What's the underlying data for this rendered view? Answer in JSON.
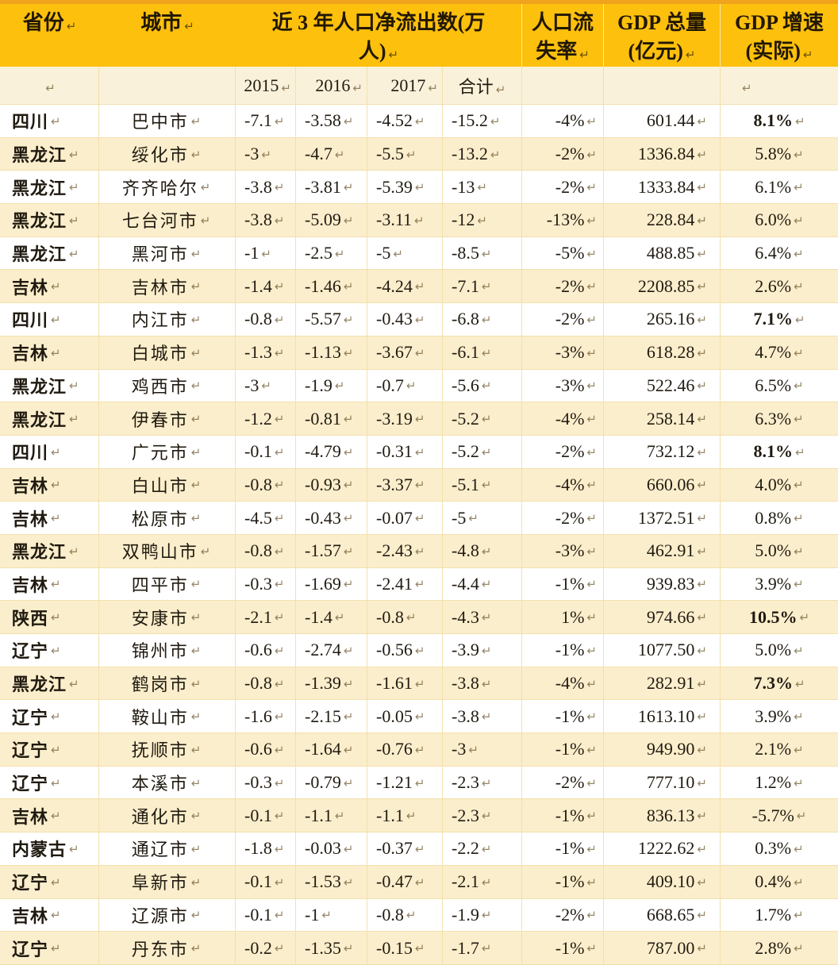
{
  "colors": {
    "header_bg": "#FCC00D",
    "header_top": "#F0A31C",
    "header_text": "#211703",
    "row_cream": "#FBEECC",
    "row_white": "#FFFFFF",
    "subheader_bg": "#FAF1DA",
    "grid": "#F2E0AC",
    "text": "#201A10",
    "mark": "#6E582D"
  },
  "table": {
    "header": {
      "province": "省份",
      "city": "城市",
      "outflow_line1": "近 3 年人口净流出数(万",
      "outflow_line2": "人)",
      "loss_line1": "人口流",
      "loss_line2": "失率",
      "gdp_line1": "GDP 总量",
      "gdp_line2": "(亿元)",
      "growth_line1": "GDP 增速",
      "growth_line2": "(实际)"
    },
    "subheader": {
      "y2015": "2015",
      "y2016": "2016",
      "y2017": "2017",
      "total": "合计"
    },
    "rows": [
      {
        "province": "四川",
        "city": "巴中市",
        "y2015": "-7.1",
        "y2016": "-3.58",
        "y2017": "-4.52",
        "total": "-15.2",
        "loss": "-4%",
        "gdp": "601.44",
        "growth": "8.1%",
        "growth_bold": true
      },
      {
        "province": "黑龙江",
        "city": "绥化市",
        "y2015": "-3",
        "y2016": "-4.7",
        "y2017": "-5.5",
        "total": "-13.2",
        "loss": "-2%",
        "gdp": "1336.84",
        "growth": "5.8%",
        "growth_bold": false
      },
      {
        "province": "黑龙江",
        "city": "齐齐哈尔",
        "y2015": "-3.8",
        "y2016": "-3.81",
        "y2017": "-5.39",
        "total": "-13",
        "loss": "-2%",
        "gdp": "1333.84",
        "growth": "6.1%",
        "growth_bold": false
      },
      {
        "province": "黑龙江",
        "city": "七台河市",
        "y2015": "-3.8",
        "y2016": "-5.09",
        "y2017": "-3.11",
        "total": "-12",
        "loss": "-13%",
        "gdp": "228.84",
        "growth": "6.0%",
        "growth_bold": false
      },
      {
        "province": "黑龙江",
        "city": "黑河市",
        "y2015": "-1",
        "y2016": "-2.5",
        "y2017": "-5",
        "total": "-8.5",
        "loss": "-5%",
        "gdp": "488.85",
        "growth": "6.4%",
        "growth_bold": false
      },
      {
        "province": "吉林",
        "city": "吉林市",
        "y2015": "-1.4",
        "y2016": "-1.46",
        "y2017": "-4.24",
        "total": "-7.1",
        "loss": "-2%",
        "gdp": "2208.85",
        "growth": "2.6%",
        "growth_bold": false
      },
      {
        "province": "四川",
        "city": "内江市",
        "y2015": "-0.8",
        "y2016": "-5.57",
        "y2017": "-0.43",
        "total": "-6.8",
        "loss": "-2%",
        "gdp": "265.16",
        "growth": "7.1%",
        "growth_bold": true
      },
      {
        "province": "吉林",
        "city": "白城市",
        "y2015": "-1.3",
        "y2016": "-1.13",
        "y2017": "-3.67",
        "total": "-6.1",
        "loss": "-3%",
        "gdp": "618.28",
        "growth": "4.7%",
        "growth_bold": false
      },
      {
        "province": "黑龙江",
        "city": "鸡西市",
        "y2015": "-3",
        "y2016": "-1.9",
        "y2017": "-0.7",
        "total": "-5.6",
        "loss": "-3%",
        "gdp": "522.46",
        "growth": "6.5%",
        "growth_bold": false
      },
      {
        "province": "黑龙江",
        "city": "伊春市",
        "y2015": "-1.2",
        "y2016": "-0.81",
        "y2017": "-3.19",
        "total": "-5.2",
        "loss": "-4%",
        "gdp": "258.14",
        "growth": "6.3%",
        "growth_bold": false
      },
      {
        "province": "四川",
        "city": "广元市",
        "y2015": "-0.1",
        "y2016": "-4.79",
        "y2017": "-0.31",
        "total": "-5.2",
        "loss": "-2%",
        "gdp": "732.12",
        "growth": "8.1%",
        "growth_bold": true
      },
      {
        "province": "吉林",
        "city": "白山市",
        "y2015": "-0.8",
        "y2016": "-0.93",
        "y2017": "-3.37",
        "total": "-5.1",
        "loss": "-4%",
        "gdp": "660.06",
        "growth": "4.0%",
        "growth_bold": false
      },
      {
        "province": "吉林",
        "city": "松原市",
        "y2015": "-4.5",
        "y2016": "-0.43",
        "y2017": "-0.07",
        "total": "-5",
        "loss": "-2%",
        "gdp": "1372.51",
        "growth": "0.8%",
        "growth_bold": false
      },
      {
        "province": "黑龙江",
        "city": "双鸭山市",
        "y2015": "-0.8",
        "y2016": "-1.57",
        "y2017": "-2.43",
        "total": "-4.8",
        "loss": "-3%",
        "gdp": "462.91",
        "growth": "5.0%",
        "growth_bold": false
      },
      {
        "province": "吉林",
        "city": "四平市",
        "y2015": "-0.3",
        "y2016": "-1.69",
        "y2017": "-2.41",
        "total": "-4.4",
        "loss": "-1%",
        "gdp": "939.83",
        "growth": "3.9%",
        "growth_bold": false
      },
      {
        "province": "陕西",
        "city": "安康市",
        "y2015": "-2.1",
        "y2016": "-1.4",
        "y2017": "-0.8",
        "total": "-4.3",
        "loss": "1%",
        "gdp": "974.66",
        "growth": "10.5%",
        "growth_bold": true
      },
      {
        "province": "辽宁",
        "city": "锦州市",
        "y2015": "-0.6",
        "y2016": "-2.74",
        "y2017": "-0.56",
        "total": "-3.9",
        "loss": "-1%",
        "gdp": "1077.50",
        "growth": "5.0%",
        "growth_bold": false
      },
      {
        "province": "黑龙江",
        "city": "鹤岗市",
        "y2015": "-0.8",
        "y2016": "-1.39",
        "y2017": "-1.61",
        "total": "-3.8",
        "loss": "-4%",
        "gdp": "282.91",
        "growth": "7.3%",
        "growth_bold": true
      },
      {
        "province": "辽宁",
        "city": "鞍山市",
        "y2015": "-1.6",
        "y2016": "-2.15",
        "y2017": "-0.05",
        "total": "-3.8",
        "loss": "-1%",
        "gdp": "1613.10",
        "growth": "3.9%",
        "growth_bold": false
      },
      {
        "province": "辽宁",
        "city": "抚顺市",
        "y2015": "-0.6",
        "y2016": "-1.64",
        "y2017": "-0.76",
        "total": "-3",
        "loss": "-1%",
        "gdp": "949.90",
        "growth": "2.1%",
        "growth_bold": false
      },
      {
        "province": "辽宁",
        "city": "本溪市",
        "y2015": "-0.3",
        "y2016": "-0.79",
        "y2017": "-1.21",
        "total": "-2.3",
        "loss": "-2%",
        "gdp": "777.10",
        "growth": "1.2%",
        "growth_bold": false
      },
      {
        "province": "吉林",
        "city": "通化市",
        "y2015": "-0.1",
        "y2016": "-1.1",
        "y2017": "-1.1",
        "total": "-2.3",
        "loss": "-1%",
        "gdp": "836.13",
        "growth": "-5.7%",
        "growth_bold": false
      },
      {
        "province": "内蒙古",
        "city": "通辽市",
        "y2015": "-1.8",
        "y2016": "-0.03",
        "y2017": "-0.37",
        "total": "-2.2",
        "loss": "-1%",
        "gdp": "1222.62",
        "growth": "0.3%",
        "growth_bold": false
      },
      {
        "province": "辽宁",
        "city": "阜新市",
        "y2015": "-0.1",
        "y2016": "-1.53",
        "y2017": "-0.47",
        "total": "-2.1",
        "loss": "-1%",
        "gdp": "409.10",
        "growth": "0.4%",
        "growth_bold": false
      },
      {
        "province": "吉林",
        "city": "辽源市",
        "y2015": "-0.1",
        "y2016": "-1",
        "y2017": "-0.8",
        "total": "-1.9",
        "loss": "-2%",
        "gdp": "668.65",
        "growth": "1.7%",
        "growth_bold": false
      },
      {
        "province": "辽宁",
        "city": "丹东市",
        "y2015": "-0.2",
        "y2016": "-1.35",
        "y2017": "-0.15",
        "total": "-1.7",
        "loss": "-1%",
        "gdp": "787.00",
        "growth": "2.8%",
        "growth_bold": false
      }
    ]
  }
}
